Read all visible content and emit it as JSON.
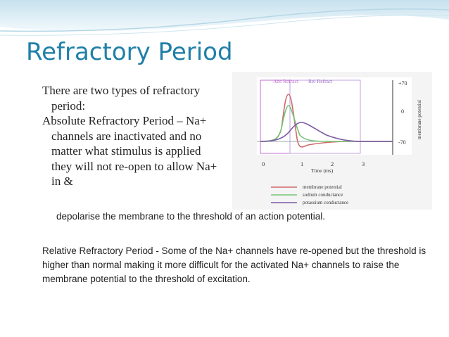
{
  "slide": {
    "title": "Refractory Period",
    "bullet_1": "There are two types of refractory period:",
    "bullet_2": "Absolute Refractory Period – Na+ channels are inactivated and no matter what stimulus is applied they will not re-open to allow Na+ in &",
    "continuation": "depolarise the membrane to the threshold of an action potential.",
    "paragraph": "Relative Refractory Period - Some of the Na+ channels have re-opened but the threshold is higher than normal making it more difficult for the activated Na+ channels to raise the membrane potential to the threshold of excitation."
  },
  "figure": {
    "abs_refract_label": "Abs Refract",
    "rel_refract_label": "Rel Refract",
    "y_tick_top": "+70",
    "y_tick_mid": "0",
    "y_tick_bottom": "-70",
    "y_axis_label": "membrane potential",
    "x_ticks": [
      "0",
      "1",
      "2",
      "3"
    ],
    "x_axis_label": "Time (ms)",
    "legend": [
      {
        "label": "membrane potential",
        "color": "#d06a6a"
      },
      {
        "label": "sodium conductance",
        "color": "#77c37a"
      },
      {
        "label": "potassium conductance",
        "color": "#7a5aa6"
      }
    ],
    "colors": {
      "abs_band": "#c070d0",
      "rel_band": "#c0a0e0",
      "axis": "#333333"
    }
  }
}
